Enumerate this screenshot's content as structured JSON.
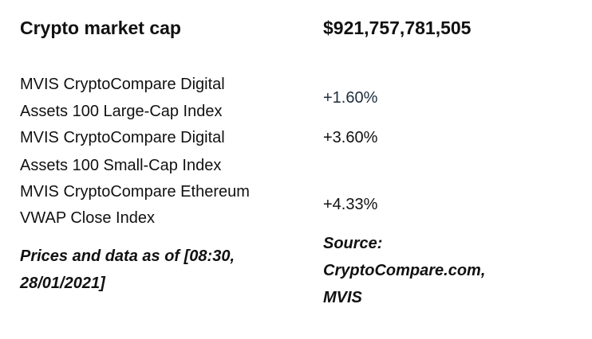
{
  "header": {
    "label": "Crypto market cap",
    "value": "$921,757,781,505"
  },
  "rows": [
    {
      "line1": "MVIS CryptoCompare Digital",
      "line2": "Assets 100 Large-Cap Index",
      "value": "+1.60%"
    },
    {
      "line1": "MVIS CryptoCompare Digital",
      "line2": "Assets 100 Small-Cap Index",
      "value": "+3.60%"
    },
    {
      "line1": "MVIS CryptoCompare Ethereum",
      "line2": "VWAP Close Index",
      "value": "+4.33%"
    }
  ],
  "footer": {
    "note_line1": "Prices and data as of [08:30,",
    "note_line2": "28/01/2021]",
    "source_line1": "Source:",
    "source_line2": "CryptoCompare.com,",
    "source_line3": "MVIS"
  },
  "colors": {
    "text": "#111111",
    "value_first": "#1e2d3b"
  }
}
